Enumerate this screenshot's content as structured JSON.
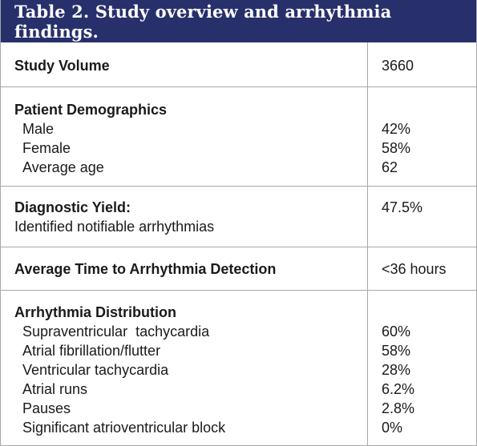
{
  "title": "Table 2. Study overview and arrhythmia findings.",
  "rows": {
    "study_volume": {
      "label": "Study Volume",
      "value": "3660"
    },
    "demographics": {
      "label": "Patient Demographics",
      "items": [
        {
          "label": "Male",
          "value": "42%"
        },
        {
          "label": "Female",
          "value": "58%"
        },
        {
          "label": "Average age",
          "value": "62"
        }
      ]
    },
    "diagnostic_yield": {
      "label": "Diagnostic Yield:",
      "sublabel": "Identified notifiable arrhythmias",
      "value": "47.5%"
    },
    "detection_time": {
      "label": "Average Time to Arrhythmia Detection",
      "value": "<36 hours"
    },
    "distribution": {
      "label": "Arrhythmia Distribution",
      "items": [
        {
          "label": "Supraventricular  tachycardia",
          "value": "60%"
        },
        {
          "label": "Atrial fibrillation/flutter",
          "value": "58%"
        },
        {
          "label": "Ventricular tachycardia",
          "value": "28%"
        },
        {
          "label": "Atrial runs",
          "value": "6.2%"
        },
        {
          "label": "Pauses",
          "value": "2.8%"
        },
        {
          "label": "Significant atrioventricular block",
          "value": "0%"
        }
      ]
    }
  }
}
